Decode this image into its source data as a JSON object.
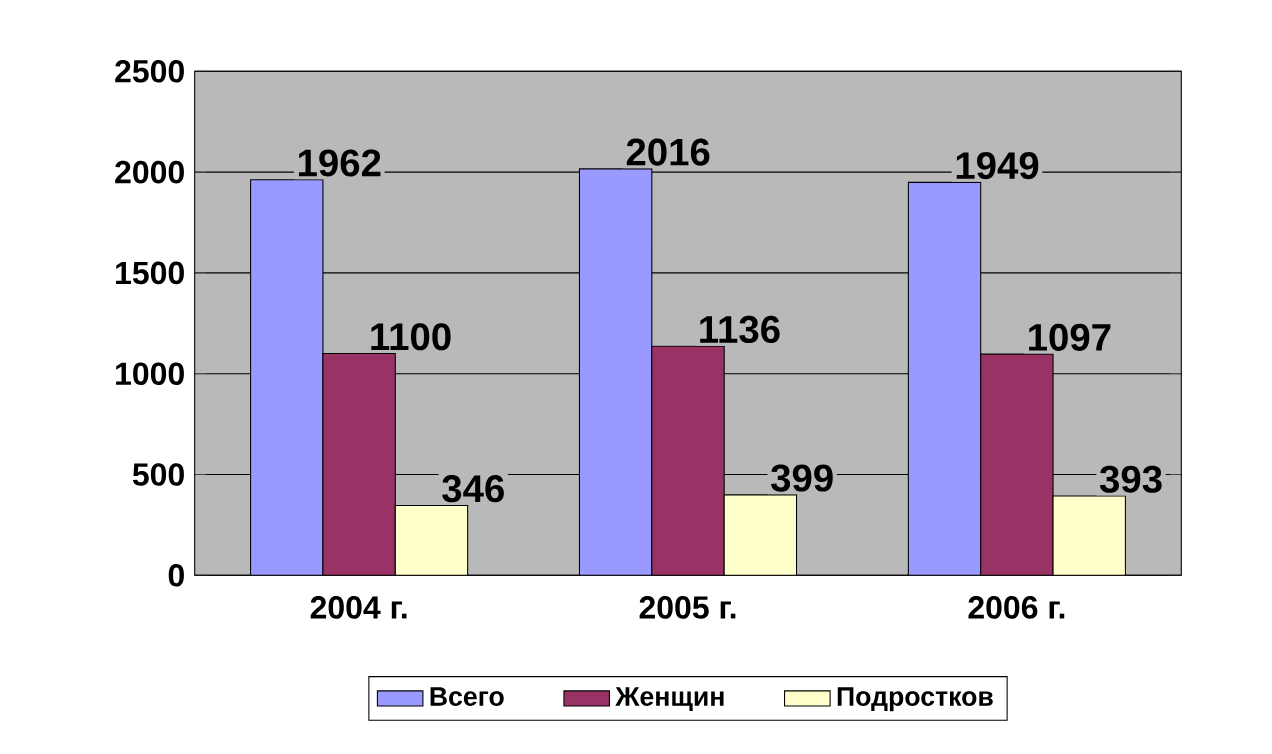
{
  "chart_data": {
    "type": "bar",
    "categories": [
      "2004 г.",
      "2005 г.",
      "2006 г."
    ],
    "series": [
      {
        "name": "Всего",
        "color": "#9999ff",
        "values": [
          1962,
          2016,
          1949
        ]
      },
      {
        "name": "Женщин",
        "color": "#993366",
        "values": [
          1100,
          1136,
          1097
        ]
      },
      {
        "name": "Подростков",
        "color": "#ffffcc",
        "values": [
          346,
          399,
          393
        ]
      }
    ],
    "ylim": [
      0,
      2500
    ],
    "yticks": [
      0,
      500,
      1000,
      1500,
      2000,
      2500
    ],
    "grid": "y",
    "legend": "bottom",
    "data_labels": true
  }
}
